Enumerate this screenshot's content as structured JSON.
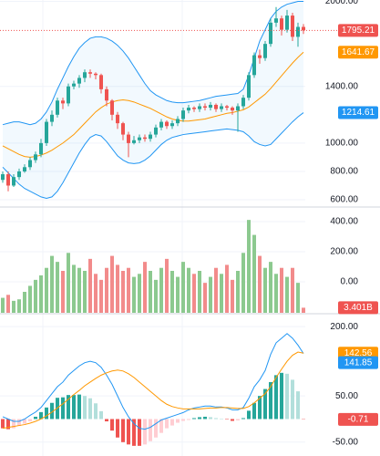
{
  "chart_data": [
    {
      "type": "candlestick",
      "open": [
        740,
        780,
        700,
        760,
        800,
        830,
        880,
        920,
        1000,
        1150,
        1200,
        1300,
        1280,
        1400,
        1420,
        1460,
        1500,
        1490,
        1480,
        1380,
        1300,
        1200,
        1140,
        1060,
        1000,
        1020,
        1040,
        1030,
        1060,
        1110,
        1150,
        1120,
        1140,
        1170,
        1230,
        1250,
        1240,
        1260,
        1250,
        1270,
        1240,
        1260,
        1250,
        1230,
        1260,
        1320,
        1480,
        1620,
        1600,
        1700,
        1850,
        1880,
        1800,
        1900,
        1750,
        1820
      ],
      "high": [
        800,
        800,
        780,
        820,
        850,
        900,
        940,
        1030,
        1170,
        1230,
        1320,
        1320,
        1420,
        1440,
        1480,
        1520,
        1520,
        1500,
        1490,
        1400,
        1310,
        1220,
        1150,
        1080,
        1050,
        1060,
        1060,
        1080,
        1130,
        1170,
        1160,
        1160,
        1190,
        1250,
        1270,
        1260,
        1280,
        1280,
        1290,
        1280,
        1280,
        1270,
        1260,
        1280,
        1340,
        1500,
        1640,
        1660,
        1720,
        1880,
        1960,
        1900,
        1940,
        1920,
        1850,
        1840
      ],
      "low": [
        720,
        660,
        690,
        740,
        790,
        810,
        860,
        900,
        980,
        1120,
        1180,
        1240,
        1260,
        1380,
        1390,
        1430,
        1460,
        1450,
        1350,
        1260,
        1160,
        1100,
        1020,
        900,
        990,
        1000,
        1010,
        1010,
        1040,
        1090,
        1100,
        1100,
        1120,
        1150,
        1210,
        1220,
        1220,
        1230,
        1230,
        1220,
        1220,
        1230,
        1200,
        1080,
        1240,
        1300,
        1460,
        1560,
        1580,
        1680,
        1820,
        1760,
        1780,
        1720,
        1680,
        1770
      ],
      "close": [
        780,
        700,
        760,
        800,
        830,
        880,
        920,
        1000,
        1150,
        1200,
        1300,
        1280,
        1400,
        1420,
        1460,
        1500,
        1490,
        1480,
        1380,
        1300,
        1200,
        1140,
        1060,
        1000,
        1020,
        1040,
        1030,
        1060,
        1110,
        1150,
        1120,
        1140,
        1170,
        1230,
        1250,
        1240,
        1260,
        1250,
        1270,
        1240,
        1260,
        1250,
        1230,
        1260,
        1320,
        1480,
        1620,
        1600,
        1700,
        1850,
        1880,
        1800,
        1900,
        1750,
        1820,
        1795.21
      ],
      "up_color": "#26a69a",
      "down_color": "#ef5350",
      "bands": {
        "upper": [
          1130,
          1140,
          1150,
          1150,
          1140,
          1130,
          1140,
          1170,
          1220,
          1290,
          1380,
          1460,
          1540,
          1610,
          1670,
          1710,
          1740,
          1750,
          1750,
          1740,
          1720,
          1690,
          1650,
          1600,
          1540,
          1480,
          1420,
          1370,
          1340,
          1320,
          1300,
          1290,
          1285,
          1285,
          1290,
          1295,
          1300,
          1310,
          1320,
          1330,
          1335,
          1340,
          1345,
          1350,
          1380,
          1480,
          1600,
          1720,
          1800,
          1880,
          1930,
          1960,
          1980,
          1990,
          2000,
          2000
        ],
        "middle": [
          980,
          960,
          940,
          920,
          905,
          900,
          905,
          915,
          930,
          950,
          975,
          1000,
          1030,
          1060,
          1100,
          1140,
          1180,
          1220,
          1250,
          1275,
          1290,
          1300,
          1305,
          1300,
          1290,
          1275,
          1260,
          1245,
          1225,
          1205,
          1185,
          1170,
          1160,
          1155,
          1155,
          1160,
          1165,
          1170,
          1180,
          1190,
          1200,
          1210,
          1215,
          1225,
          1235,
          1255,
          1285,
          1315,
          1345,
          1385,
          1430,
          1475,
          1520,
          1565,
          1605,
          1641.67
        ],
        "lower": [
          830,
          790,
          750,
          710,
          680,
          660,
          640,
          620,
          610,
          620,
          660,
          720,
          790,
          860,
          930,
          990,
          1040,
          1060,
          1050,
          1010,
          960,
          910,
          880,
          860,
          855,
          860,
          880,
          910,
          950,
          990,
          1020,
          1040,
          1050,
          1060,
          1065,
          1070,
          1075,
          1080,
          1085,
          1090,
          1095,
          1100,
          1095,
          1090,
          1080,
          1050,
          1010,
          990,
          980,
          990,
          1030,
          1070,
          1110,
          1150,
          1185,
          1214.61
        ],
        "band_color": "#2196f3",
        "middle_color": "#ff9800",
        "fill": "#2196f3"
      },
      "ylim": [
        555,
        2010
      ],
      "yticks": [
        {
          "value": 2000,
          "label": "2000.00"
        },
        {
          "value": 1400,
          "label": "1400.00"
        },
        {
          "value": 1000,
          "label": "1000.00"
        },
        {
          "value": 800,
          "label": "800.00"
        },
        {
          "value": 600,
          "label": "600.00"
        }
      ],
      "grid": true
    },
    {
      "type": "volume",
      "values": [
        10,
        12,
        8,
        9,
        14,
        18,
        22,
        25,
        30,
        38,
        34,
        28,
        40,
        32,
        30,
        28,
        36,
        26,
        22,
        30,
        38,
        32,
        28,
        30,
        24,
        26,
        34,
        28,
        22,
        30,
        36,
        28,
        24,
        34,
        30,
        26,
        28,
        20,
        24,
        30,
        26,
        32,
        22,
        28,
        40,
        62,
        52,
        38,
        30,
        34,
        26,
        30,
        24,
        30,
        20,
        3.401
      ],
      "value_labels": [
        null,
        null,
        null,
        null,
        null,
        null,
        null,
        null,
        null,
        null,
        null,
        null,
        null,
        null,
        null,
        null,
        null,
        null,
        null,
        null,
        null,
        null,
        null,
        null,
        null,
        null,
        null,
        null,
        null,
        null,
        null,
        null,
        null,
        null,
        null,
        null,
        null,
        null,
        null,
        null,
        null,
        null,
        null,
        null,
        null,
        null,
        null,
        null,
        null,
        null,
        null,
        null,
        null,
        null,
        null,
        "3.401B"
      ],
      "axis": "y2",
      "y2lim": [
        0,
        70
      ],
      "up_color": "#8cc98f",
      "down_color": "#f28b8b",
      "ylim": [
        -206,
        491
      ],
      "yticks": [
        {
          "value": 400,
          "label": "400.00"
        },
        {
          "value": 200,
          "label": "200.00"
        },
        {
          "value": 0,
          "label": "0.00"
        }
      ],
      "grid": true
    },
    {
      "type": "macd",
      "macd": [
        5,
        0,
        -5,
        -5,
        0,
        8,
        15,
        25,
        40,
        55,
        70,
        80,
        95,
        105,
        115,
        122,
        125,
        122,
        112,
        95,
        75,
        50,
        25,
        5,
        -10,
        -20,
        -22,
        -18,
        -10,
        -2,
        2,
        6,
        10,
        14,
        20,
        24,
        26,
        28,
        28,
        26,
        26,
        24,
        20,
        20,
        25,
        45,
        70,
        85,
        105,
        140,
        165,
        175,
        185,
        175,
        160,
        141.85
      ],
      "signal": [
        -20,
        -18,
        -16,
        -14,
        -12,
        -9,
        -5,
        0,
        7,
        15,
        24,
        33,
        43,
        53,
        62,
        72,
        80,
        88,
        95,
        100,
        104,
        106,
        104,
        98,
        90,
        80,
        70,
        60,
        50,
        40,
        32,
        27,
        24,
        22,
        22,
        22,
        22,
        23,
        24,
        24,
        25,
        25,
        24,
        23,
        23,
        27,
        35,
        45,
        55,
        70,
        90,
        108,
        125,
        138,
        145,
        142.56
      ],
      "histogram": [
        -20,
        -22,
        -20,
        -15,
        -10,
        -5,
        5,
        15,
        25,
        35,
        46,
        47,
        52,
        52,
        53,
        50,
        45,
        34,
        17,
        -5,
        -25,
        -40,
        -50,
        -55,
        -58,
        -58,
        -55,
        -48,
        -40,
        -30,
        -20,
        -14,
        -8,
        -4,
        -2,
        2,
        4,
        5,
        4,
        2,
        1,
        -1,
        -4,
        -3,
        2,
        18,
        35,
        50,
        65,
        80,
        95,
        100,
        98,
        85,
        60,
        -0.71
      ],
      "macd_color": "#2196f3",
      "signal_color": "#ff9800",
      "hist_colors": {
        "up_rising": "#26a69a",
        "up_falling": "#b2dfdb",
        "down_falling": "#ef5350",
        "down_rising": "#ffcdd2"
      },
      "ylim": [
        -80,
        226
      ],
      "yticks": [
        {
          "value": 200,
          "label": "200.00"
        },
        {
          "value": 50,
          "label": "50.00"
        },
        {
          "value": -50,
          "label": "-50.00"
        }
      ],
      "grid": true
    }
  ]
}
